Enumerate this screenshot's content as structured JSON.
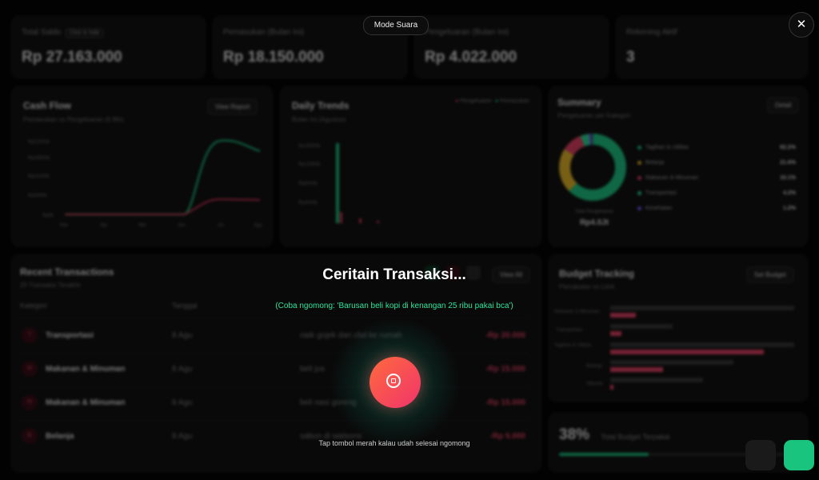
{
  "stats": [
    {
      "label": "Total Saldo",
      "badge": "Click to hide",
      "value": "Rp 27.163.000"
    },
    {
      "label": "Pemasukan (Bulan Ini)",
      "value": "Rp 18.150.000"
    },
    {
      "label": "Pengeluaran (Bulan Ini)",
      "value": "Rp 4.022.000"
    },
    {
      "label": "Rekening Aktif",
      "value": "3"
    }
  ],
  "cashflow": {
    "title": "Cash Flow",
    "subtitle": "Pemasukan vs Pengeluaran (6 Bln)",
    "button": "View Report",
    "y_ticks": [
      "Rp22000k",
      "Rp16500k",
      "Rp11000k",
      "Rp5500k",
      "Rp0k"
    ],
    "x_ticks": [
      "Mar",
      "Apr",
      "Mei",
      "Jun",
      "Jul",
      "Agu"
    ]
  },
  "daily": {
    "title": "Daily Trends",
    "subtitle": "Bulan Ini (Agustus)",
    "legend_out": "Pengeluaran",
    "legend_in": "Pemasukan",
    "y_ticks": [
      "Rp18000k",
      "Rp12000k",
      "Rp8000k",
      "Rp4000k"
    ]
  },
  "summary": {
    "title": "Summary",
    "subtitle": "Pengeluaran per Kategori",
    "button": "Detail",
    "total_label": "Total Pengeluaran",
    "total_value": "Rp4.0Jt",
    "items": [
      {
        "name": "Tagihan & Utilitas",
        "pct": "62.2%",
        "color": "#1fd18c"
      },
      {
        "name": "Belanja",
        "pct": "21.6%",
        "color": "#f2c12e"
      },
      {
        "name": "Makanan & Minuman",
        "pct": "10.1%",
        "color": "#f0466a"
      },
      {
        "name": "Transportasi",
        "pct": "4.2%",
        "color": "#2ee59d"
      },
      {
        "name": "Kesehatan",
        "pct": "1.2%",
        "color": "#7c5cff"
      }
    ]
  },
  "recent": {
    "title": "Recent Transactions",
    "subtitle": "20 Transaksi Terakhir",
    "button": "View All",
    "headers": [
      "Kategori",
      "Tanggal"
    ],
    "rows": [
      {
        "icon": "T",
        "category": "Transportasi",
        "date": "8 Agu",
        "note": "naik gojek dari cbd ke rumah",
        "amount": "-Rp 20.000"
      },
      {
        "icon": "M",
        "category": "Makanan & Minuman",
        "date": "8 Agu",
        "note": "beli jus",
        "amount": "-Rp 15.000"
      },
      {
        "icon": "M",
        "category": "Makanan & Minuman",
        "date": "8 Agu",
        "note": "beli nasi goreng",
        "amount": "-Rp 15.000"
      },
      {
        "icon": "B",
        "category": "Belanja",
        "date": "8 Agu",
        "note": "sabun di watsons",
        "amount": "-Rp 5.000"
      }
    ]
  },
  "budget": {
    "title": "Budget Tracking",
    "subtitle": "Pemakaian vs Limit",
    "button": "Set Budget",
    "labels": [
      "Makanan & Minuman",
      "Transportasi",
      "Tagihan & Utilitas",
      "Belanja",
      "Hiburan"
    ]
  },
  "total_budget": {
    "pct": "38%",
    "label": "Total Budget Terpakai",
    "fraction": 0.38
  },
  "voice": {
    "mode": "Mode Suara",
    "title": "Ceritain Transaksi...",
    "hint": "(Coba ngomong: 'Barusan beli kopi di kenangan 25 ribu pakai bca')",
    "tap_hint": "Tap tombol merah kalau udah selesai ngomong",
    "close": "✕"
  }
}
